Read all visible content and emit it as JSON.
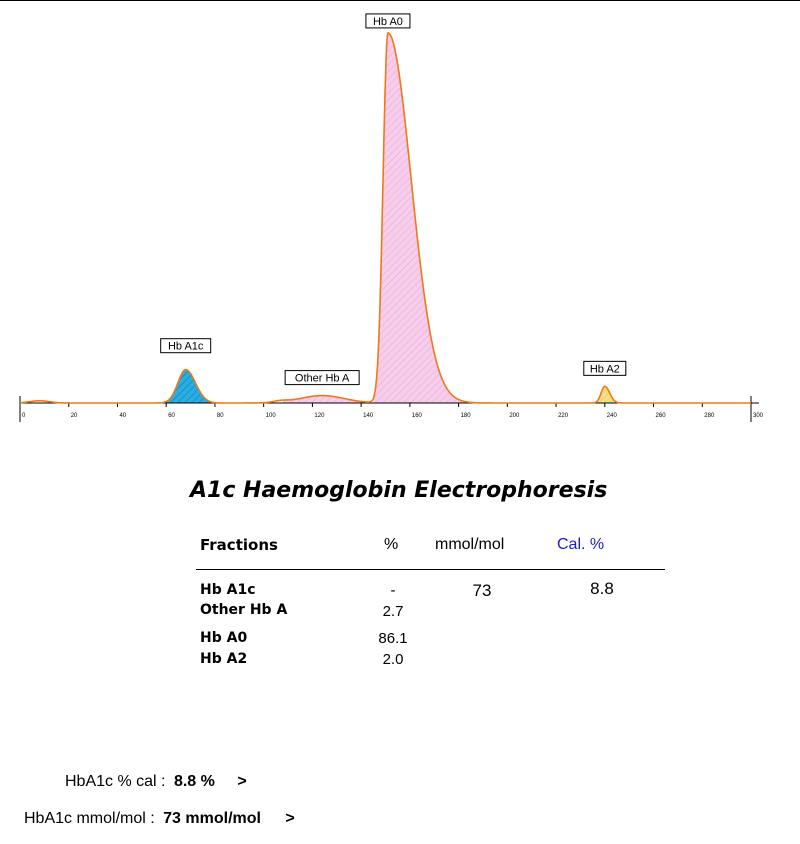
{
  "chart_data": {
    "type": "line",
    "x_ticks": [
      "0",
      "20",
      "40",
      "60",
      "80",
      "100",
      "120",
      "140",
      "160",
      "180",
      "200",
      "220",
      "240",
      "260",
      "280",
      "300"
    ],
    "xlim": [
      0,
      300
    ],
    "peaks": [
      {
        "name": "Hb A1c",
        "x": 68,
        "height": 0.09,
        "fill": "#29aee0"
      },
      {
        "name": "Other Hb A",
        "x": 124,
        "height": 0.02,
        "fill": "#f4c7e8"
      },
      {
        "name": "Hb A0",
        "x": 151,
        "height": 1.0,
        "fill": "#f4c7e8"
      },
      {
        "name": "Hb A2",
        "x": 240,
        "height": 0.045,
        "fill": "#f7e08c"
      }
    ],
    "colors": {
      "trace": "#f07818",
      "a1c_fill": "#29aee0",
      "a0_fill": "#f4c7e8",
      "a2_fill": "#f7e08c"
    }
  },
  "report": {
    "title": "A1c Haemoglobin Electrophoresis",
    "headers": {
      "fractions": "Fractions",
      "percent": "%",
      "mmol": "mmol/mol",
      "cal": "Cal. %"
    },
    "rows": [
      {
        "name": "Hb A1c",
        "percent": "-",
        "mmol": "73",
        "cal": "8.8"
      },
      {
        "name": "Other Hb A",
        "percent": "2.7",
        "mmol": "",
        "cal": ""
      },
      {
        "name": "Hb A0",
        "percent": "86.1",
        "mmol": "",
        "cal": ""
      },
      {
        "name": "Hb A2",
        "percent": "2.0",
        "mmol": "",
        "cal": ""
      }
    ]
  },
  "summary": {
    "cal_label": "HbA1c % cal :",
    "cal_value": "8.8 %",
    "cal_arrow": ">",
    "mmol_label": "HbA1c mmol/mol :",
    "mmol_value": "73 mmol/mol",
    "mmol_arrow": ">"
  }
}
